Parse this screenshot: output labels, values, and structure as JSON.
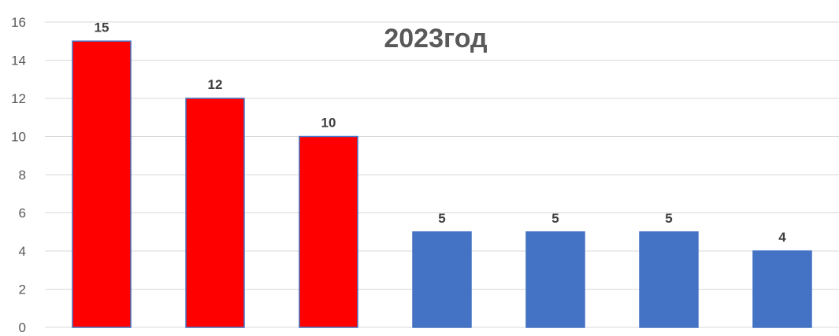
{
  "chart_data": {
    "type": "bar",
    "title": "2023год",
    "xlabel": "",
    "ylabel": "",
    "categories": [
      "",
      "",
      "",
      "",
      "",
      "",
      ""
    ],
    "values": [
      15,
      12,
      10,
      5,
      5,
      5,
      4
    ],
    "bar_colors": [
      "#ff0000",
      "#ff0000",
      "#ff0000",
      "#4472c4",
      "#4472c4",
      "#4472c4",
      "#4472c4"
    ],
    "bar_border_color": "#4472c4",
    "data_labels": [
      "15",
      "12",
      "10",
      "5",
      "5",
      "5",
      "4"
    ],
    "ylim": [
      0,
      16
    ],
    "y_ticks": [
      0,
      2,
      4,
      6,
      8,
      10,
      12,
      14,
      16
    ],
    "y_tick_labels": [
      "0",
      "2",
      "4",
      "6",
      "8",
      "10",
      "12",
      "14",
      "16"
    ],
    "grid": true,
    "legend": "none"
  }
}
